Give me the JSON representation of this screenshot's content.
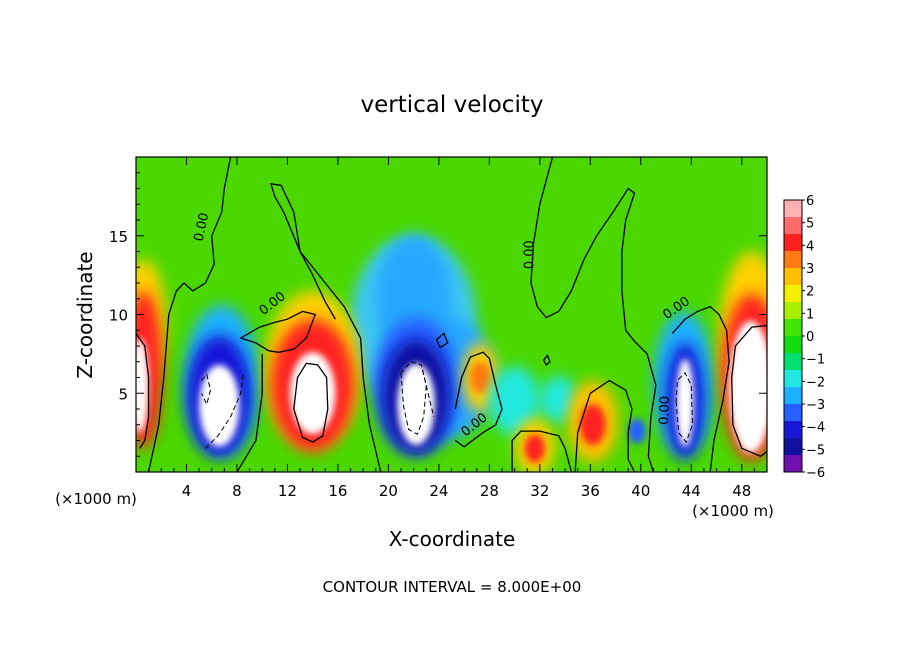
{
  "chart_data": {
    "type": "heatmap",
    "title": "vertical velocity",
    "xlabel": "X-coordinate",
    "ylabel": "Z-coordinate",
    "x_unit_left": "(×1000 m)",
    "x_unit_right": "(×1000 m)",
    "footer": "CONTOUR INTERVAL = 8.000E+00",
    "xlim": [
      0,
      50
    ],
    "ylim": [
      0,
      20
    ],
    "x_ticks": [
      4,
      8,
      12,
      16,
      20,
      24,
      28,
      32,
      36,
      40,
      44,
      48
    ],
    "y_ticks": [
      5,
      10,
      15
    ],
    "contour_labels": [
      {
        "text": "0.00",
        "x": 5.5,
        "y": 15.5
      },
      {
        "text": "0.00",
        "x": 11,
        "y": 10.5
      },
      {
        "text": "0.00",
        "x": 31.5,
        "y": 13.8
      },
      {
        "text": "0.00",
        "x": 27,
        "y": 2.8
      },
      {
        "text": "0.00",
        "x": 42.2,
        "y": 3.9
      },
      {
        "text": "0.00",
        "x": 43,
        "y": 10.2
      }
    ],
    "colorbar": {
      "ticks": [
        6,
        5,
        4,
        3,
        2,
        1,
        0,
        -1,
        -2,
        -3,
        -4,
        -5,
        -6
      ],
      "colors": [
        "#ffb0b0",
        "#ff6a6a",
        "#ff2020",
        "#ff7a10",
        "#ffc000",
        "#f2f000",
        "#a8f000",
        "#42e400",
        "#10dc10",
        "#00e070",
        "#20e8e0",
        "#1ab0ff",
        "#2860ff",
        "#1818d8",
        "#1010a0",
        "#7010b0"
      ]
    },
    "features": [
      {
        "type": "updraft",
        "x": 0.2,
        "z": 5.5,
        "peak": 8
      },
      {
        "type": "downdraft",
        "x": 6.5,
        "z": 3.8,
        "peak": -9
      },
      {
        "type": "updraft",
        "x": 14,
        "z": 5.0,
        "peak": 9
      },
      {
        "type": "downdraft",
        "x": 22,
        "z": 4.3,
        "peak": -9
      },
      {
        "type": "updraft",
        "x": 27,
        "z": 5.8,
        "peak": 3
      },
      {
        "type": "updraft",
        "x": 31.5,
        "z": 1.5,
        "peak": 4
      },
      {
        "type": "updraft",
        "x": 36.2,
        "z": 3.0,
        "peak": 4
      },
      {
        "type": "downdraft",
        "x": 43.5,
        "z": 4.2,
        "peak": -9
      },
      {
        "type": "updraft",
        "x": 48.5,
        "z": 5.5,
        "peak": 9
      }
    ]
  }
}
